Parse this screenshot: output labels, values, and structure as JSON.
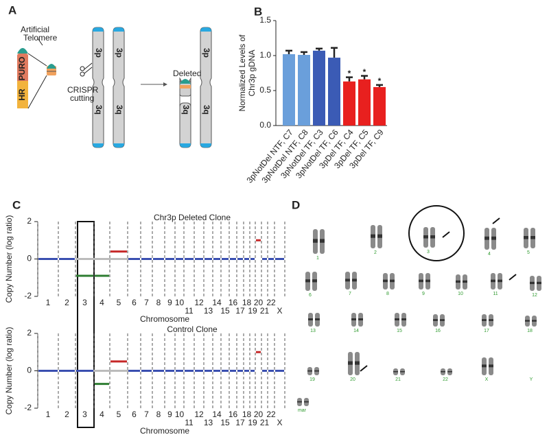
{
  "panel_labels": [
    "A",
    "B",
    "C",
    "D"
  ],
  "panel_a": {
    "telomere_label": [
      "Artificial",
      "Telomere"
    ],
    "puro": "PURO",
    "hr": "HR",
    "crispr": [
      "CRISPR",
      "cutting"
    ],
    "arm_labels": [
      "3p",
      "3q"
    ],
    "deleted": "Deleted"
  },
  "chart_data": [
    {
      "type": "bar",
      "ylabel": [
        "Normalized Levels of",
        "Chr3p gDNA"
      ],
      "categories": [
        "3pNotDel NTF, C7",
        "3pNotDel NTF, C8",
        "3pNotDel TF, C3",
        "3pNotDel TF, C6",
        "3pDel TF, C4",
        "3pDel TF, C5",
        "3pDel TF, C9"
      ],
      "values": [
        1.02,
        1.01,
        1.07,
        0.97,
        0.63,
        0.66,
        0.55
      ],
      "errors": [
        0.05,
        0.04,
        0.03,
        0.14,
        0.06,
        0.05,
        0.03
      ],
      "colors": [
        "#6a9fdb",
        "#6a9fdb",
        "#3b5bb5",
        "#3b5bb5",
        "#e8201f",
        "#e8201f",
        "#e8201f"
      ],
      "significance": [
        null,
        null,
        null,
        null,
        "*",
        "*",
        "*"
      ],
      "ylim": [
        0,
        1.5
      ],
      "yticks": [
        {
          "value": 0,
          "label": "0.0"
        },
        0.5,
        {
          "value": 1,
          "label": "1.0"
        },
        1.5
      ]
    },
    {
      "type": "segment",
      "title": "Chr3p Deleted Clone",
      "ylabel": "Copy Number (log ratio)",
      "xlabel": "Chromosome",
      "categories": [
        "1",
        "2",
        "3",
        "4",
        "5",
        "6",
        "7",
        "8",
        "9",
        "10",
        "11",
        "12",
        "13",
        "14",
        "15",
        "16",
        "17",
        "18",
        "19",
        "20",
        "21",
        "22",
        "X"
      ],
      "values": [
        0,
        0,
        -0.9,
        -0.9,
        0.4,
        0,
        0,
        0,
        0,
        0,
        0,
        0,
        0,
        0,
        0,
        0,
        0,
        0,
        0,
        1.0,
        0,
        0,
        0
      ],
      "colors": [
        "#3a4fb0",
        "#3a4fb0",
        "#2e7d32",
        "#2e7d32",
        "#c62828",
        "#3a4fb0",
        "#3a4fb0",
        "#3a4fb0",
        "#3a4fb0",
        "#3a4fb0",
        "#3a4fb0",
        "#3a4fb0",
        "#3a4fb0",
        "#3a4fb0",
        "#3a4fb0",
        "#3a4fb0",
        "#3a4fb0",
        "#3a4fb0",
        "#3a4fb0",
        "#c62828",
        "#3a4fb0",
        "#3a4fb0",
        "#3a4fb0"
      ],
      "ylim": [
        -2,
        2
      ],
      "yticks": [
        -2,
        0,
        2
      ]
    },
    {
      "type": "segment",
      "title": "Control Clone",
      "ylabel": "Copy Number (log ratio)",
      "xlabel": "Chromosome",
      "categories": [
        "1",
        "2",
        "3",
        "4",
        "5",
        "6",
        "7",
        "8",
        "9",
        "10",
        "11",
        "12",
        "13",
        "14",
        "15",
        "16",
        "17",
        "18",
        "19",
        "20",
        "21",
        "22",
        "X"
      ],
      "values": [
        0,
        0,
        0,
        -0.7,
        0.5,
        0,
        0,
        0,
        0,
        0,
        0,
        0,
        0,
        0,
        0,
        0,
        0,
        0,
        0,
        1.0,
        0,
        0,
        0
      ],
      "colors": [
        "#3a4fb0",
        "#3a4fb0",
        "#3a4fb0",
        "#2e7d32",
        "#c62828",
        "#3a4fb0",
        "#3a4fb0",
        "#3a4fb0",
        "#3a4fb0",
        "#3a4fb0",
        "#3a4fb0",
        "#3a4fb0",
        "#3a4fb0",
        "#3a4fb0",
        "#3a4fb0",
        "#3a4fb0",
        "#3a4fb0",
        "#3a4fb0",
        "#3a4fb0",
        "#c62828",
        "#3a4fb0",
        "#3a4fb0",
        "#3a4fb0"
      ],
      "ylim": [
        -2,
        2
      ],
      "yticks": [
        -2,
        0,
        2
      ]
    }
  ],
  "panel_d": {
    "labels": [
      "1",
      "2",
      "3",
      "4",
      "5",
      "6",
      "7",
      "8",
      "9",
      "10",
      "11",
      "12",
      "13",
      "14",
      "15",
      "16",
      "17",
      "18",
      "19",
      "20",
      "21",
      "22",
      "X",
      "Y",
      "mar"
    ]
  }
}
